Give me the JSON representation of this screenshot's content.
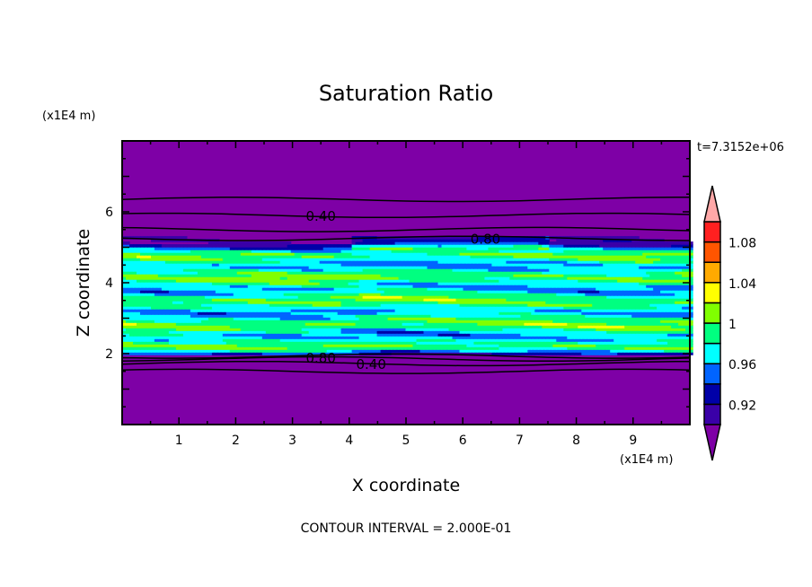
{
  "chart_data": {
    "type": "heatmap",
    "subtype": "filled-contour",
    "title": "Saturation Ratio",
    "xlabel": "X coordinate",
    "ylabel": "Z coordinate",
    "x_unit": "(x1E4 m)",
    "y_unit": "(x1E4 m)",
    "xlim": [
      0,
      10
    ],
    "ylim": [
      0,
      8
    ],
    "x_ticks": [
      1,
      2,
      3,
      4,
      5,
      6,
      7,
      8,
      9
    ],
    "y_ticks": [
      2,
      4,
      6
    ],
    "time_label": "t=7.3152e+06",
    "footer": "CONTOUR INTERVAL = 2.000E-01",
    "colorbar": {
      "levels": [
        0.92,
        0.94,
        0.96,
        0.98,
        1.0,
        1.02,
        1.04,
        1.06,
        1.08
      ],
      "labels": [
        "0.92",
        "0.96",
        "1",
        "1.04",
        "1.08"
      ],
      "label_values": [
        0.92,
        0.96,
        1.0,
        1.04,
        1.08
      ],
      "colors": [
        "#7e00a6",
        "#3a00a8",
        "#0000a8",
        "#0064ff",
        "#00ffff",
        "#00ff80",
        "#80ff00",
        "#ffff00",
        "#ffaa00",
        "#ff5500",
        "#ff2020",
        "#ffa8a8"
      ],
      "extend": "both"
    },
    "contour_lines": [
      {
        "value": 0.4,
        "z": 6.35
      },
      {
        "value": 0.4,
        "z": 5.9
      },
      {
        "value": 0.8,
        "z": 5.5
      },
      {
        "value": 0.8,
        "z": 5.25
      },
      {
        "value": 0.8,
        "z": 1.93
      },
      {
        "value": 0.8,
        "z": 1.85
      },
      {
        "value": 0.4,
        "z": 1.72
      },
      {
        "value": 0.4,
        "z": 1.5
      }
    ],
    "contour_labels": [
      {
        "text": "0.40",
        "x": 3.5,
        "z": 5.9
      },
      {
        "text": "0.80",
        "x": 6.4,
        "z": 5.25
      },
      {
        "text": "0.80",
        "x": 3.5,
        "z": 1.9
      },
      {
        "text": "0.40",
        "x": 3.5,
        "z": 1.72
      }
    ],
    "field_range": {
      "moist_layer_z": [
        1.97,
        5.3
      ],
      "typical_value": 1.0
    }
  }
}
